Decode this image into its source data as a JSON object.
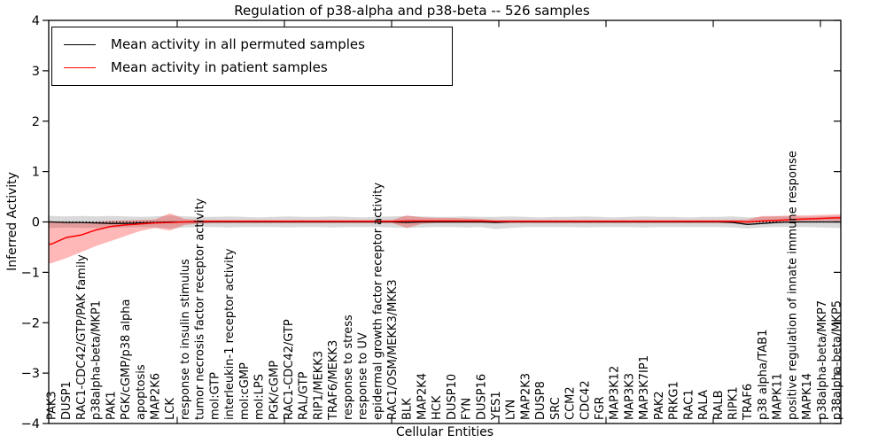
{
  "chart_data": {
    "type": "line",
    "title": "Regulation of p38-alpha and p38-beta -- 526 samples",
    "xlabel": "Cellular Entities",
    "ylabel": "Inferred Activity",
    "ylim": [
      -4,
      4
    ],
    "yticks": [
      {
        "v": 4,
        "label": "4"
      },
      {
        "v": 3,
        "label": "3"
      },
      {
        "v": 2,
        "label": "2"
      },
      {
        "v": 1,
        "label": "1"
      },
      {
        "v": 0,
        "label": "0"
      },
      {
        "v": -1,
        "label": "−1"
      },
      {
        "v": -2,
        "label": "−2"
      },
      {
        "v": -3,
        "label": "−3"
      },
      {
        "v": -4,
        "label": "−4"
      }
    ],
    "grid": false,
    "zero_line_style": "dotted",
    "legend_position": "upper-left",
    "legend": [
      {
        "label": "Mean activity in all permuted samples",
        "color": "#000000"
      },
      {
        "label": "Mean activity in patient samples",
        "color": "#ff0000"
      }
    ],
    "categories": [
      "PAK3",
      "DUSP1",
      "RAC1-CDC42/GTP/PAK family",
      "p38alpha-beta/MKP1",
      "PAK1",
      "PGK/cGMP/p38 alpha",
      "apoptosis",
      "MAP2K6",
      "LCK",
      "response to insulin stimulus",
      "tumor necrosis factor receptor activity",
      "mol:GTP",
      "interleukin-1 receptor activity",
      "mol:cGMP",
      "mol:LPS",
      "PGK/cGMP",
      "RAC1-CDC42/GTP",
      "RAL/GTP",
      "RIP1/MEKK3",
      "TRAF6/MEKK3",
      "response to stress",
      "response to UV",
      "epidermal growth factor receptor activity",
      "RAC1/OSM/MEKK3/MKK3",
      "BLK",
      "MAP2K4",
      "HCK",
      "DUSP10",
      "FYN",
      "DUSP16",
      "YES1",
      "LYN",
      "MAP2K3",
      "DUSP8",
      "SRC",
      "CCM2",
      "CDC42",
      "FGR",
      "MAP3K12",
      "MAP3K3",
      "MAP3K7IP1",
      "PAK2",
      "PRKG1",
      "RAC1",
      "RALA",
      "RALB",
      "RIPK1",
      "TRAF6",
      "p38 alpha/TAB1",
      "MAPK11",
      "positive regulation of innate immune response",
      "MAPK14",
      "p38alpha-beta/MKP7",
      "p38alpha-beta/MKP5"
    ],
    "series": [
      {
        "name": "Mean activity in all permuted samples",
        "color": "#000000",
        "line_width": 1.3,
        "band_color": "#000000",
        "band_opacity": 0.15,
        "values": [
          0,
          -0.01,
          -0.01,
          -0.02,
          -0.03,
          -0.03,
          -0.02,
          -0.01,
          0,
          0,
          0,
          0,
          0,
          0,
          0,
          0,
          0,
          0,
          0,
          0,
          0,
          0,
          0,
          0,
          -0.01,
          0,
          0,
          0,
          0,
          0,
          -0.01,
          0,
          0,
          0,
          0,
          0,
          0,
          0,
          0,
          0,
          0,
          0,
          0,
          0,
          0,
          0,
          -0.01,
          -0.05,
          -0.03,
          -0.01,
          0,
          0,
          0,
          0
        ],
        "band_lo": [
          -0.12,
          -0.11,
          -0.12,
          -0.12,
          -0.12,
          -0.11,
          -0.1,
          -0.11,
          -0.13,
          -0.11,
          -0.1,
          -0.1,
          -0.11,
          -0.1,
          -0.1,
          -0.1,
          -0.11,
          -0.1,
          -0.1,
          -0.11,
          -0.1,
          -0.1,
          -0.1,
          -0.11,
          -0.12,
          -0.11,
          -0.1,
          -0.1,
          -0.11,
          -0.1,
          -0.14,
          -0.12,
          -0.1,
          -0.1,
          -0.1,
          -0.1,
          -0.11,
          -0.1,
          -0.1,
          -0.1,
          -0.11,
          -0.1,
          -0.1,
          -0.1,
          -0.1,
          -0.1,
          -0.11,
          -0.13,
          -0.11,
          -0.1,
          -0.1,
          -0.1,
          -0.11,
          -0.12
        ],
        "band_hi": [
          0.12,
          0.11,
          0.12,
          0.11,
          0.12,
          0.11,
          0.1,
          0.11,
          0.13,
          0.11,
          0.1,
          0.1,
          0.11,
          0.1,
          0.09,
          0.1,
          0.11,
          0.1,
          0.1,
          0.11,
          0.1,
          0.09,
          0.1,
          0.11,
          0.12,
          0.11,
          0.1,
          0.1,
          0.11,
          0.1,
          0.1,
          0.11,
          0.1,
          0.09,
          0.1,
          0.1,
          0.11,
          0.1,
          0.09,
          0.1,
          0.11,
          0.1,
          0.1,
          0.09,
          0.1,
          0.1,
          0.11,
          0.09,
          0.1,
          0.11,
          0.11,
          0.1,
          0.11,
          0.12
        ]
      },
      {
        "name": "Mean activity in patient samples",
        "color": "#ff0000",
        "line_width": 1.5,
        "band_color": "#ff0000",
        "band_opacity": 0.28,
        "values": [
          -0.44,
          -0.31,
          -0.26,
          -0.16,
          -0.09,
          -0.06,
          -0.04,
          -0.02,
          -0.01,
          0,
          0.01,
          0.01,
          0.01,
          0.01,
          0.01,
          0.01,
          0.01,
          0.01,
          0.01,
          0.01,
          0.01,
          0.01,
          0.01,
          0.01,
          0.02,
          0.02,
          0.02,
          0.02,
          0.02,
          0.02,
          0.01,
          0.01,
          0.01,
          0.01,
          0.01,
          0.01,
          0.01,
          0.01,
          0.01,
          0.01,
          0.01,
          0.01,
          0.01,
          0.01,
          0.01,
          0.01,
          0.01,
          0,
          0.02,
          0.03,
          0.05,
          0.06,
          0.07,
          0.08
        ],
        "band_lo": [
          -0.82,
          -0.72,
          -0.6,
          -0.48,
          -0.38,
          -0.28,
          -0.18,
          -0.12,
          -0.17,
          -0.06,
          -0.03,
          -0.02,
          -0.02,
          -0.02,
          -0.02,
          -0.02,
          -0.02,
          -0.02,
          -0.02,
          -0.02,
          -0.02,
          -0.02,
          -0.02,
          -0.02,
          -0.12,
          -0.04,
          -0.02,
          -0.02,
          -0.02,
          -0.02,
          -0.02,
          -0.02,
          -0.02,
          -0.02,
          -0.02,
          -0.02,
          -0.02,
          -0.02,
          -0.02,
          -0.02,
          -0.02,
          -0.02,
          -0.02,
          -0.02,
          -0.02,
          -0.02,
          -0.02,
          -0.03,
          0,
          0,
          0.01,
          0.02,
          0.02,
          0.02
        ],
        "band_hi": [
          0,
          -0.02,
          -0.02,
          0,
          0.02,
          0.03,
          0.04,
          0.05,
          0.17,
          0.06,
          0.04,
          0.04,
          0.04,
          0.04,
          0.04,
          0.04,
          0.04,
          0.04,
          0.04,
          0.04,
          0.04,
          0.04,
          0.04,
          0.04,
          0.13,
          0.09,
          0.08,
          0.08,
          0.07,
          0.06,
          0.04,
          0.04,
          0.04,
          0.04,
          0.04,
          0.04,
          0.04,
          0.04,
          0.04,
          0.04,
          0.04,
          0.04,
          0.04,
          0.04,
          0.04,
          0.04,
          0.04,
          0.05,
          0.12,
          0.12,
          0.13,
          0.13,
          0.14,
          0.15
        ]
      }
    ]
  }
}
